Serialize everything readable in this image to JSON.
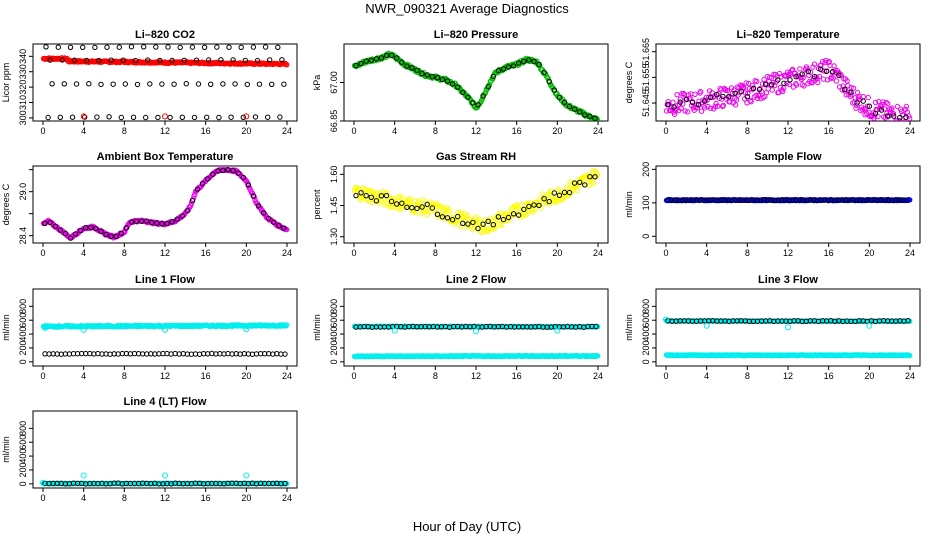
{
  "figure": {
    "title": "NWR_090321  Average Diagnostics",
    "xlabel": "Hour of Day (UTC)"
  },
  "chart_data": [
    {
      "type": "scatter",
      "title": "Li–820 CO2",
      "ylabel": "Licor ppm",
      "xlim": [
        0,
        24
      ],
      "ylim": [
        298,
        348
      ],
      "yticks": [
        300,
        310,
        320,
        330,
        340
      ],
      "xticks": [
        0,
        4,
        8,
        12,
        16,
        20,
        24
      ],
      "series": [
        {
          "name": "raw",
          "color": "#ff0000",
          "marker": "open-circle",
          "pattern": "flat",
          "start": 337,
          "end": 335,
          "bump_start": 0,
          "bump_end": 2.4,
          "bump_value": 338.5,
          "jitter": 0.5
        },
        {
          "name": "avg-high",
          "color": "#000000",
          "marker": "open-circle",
          "pattern": "sparse",
          "value": 346,
          "step": 1.2,
          "offset": 0.3
        },
        {
          "name": "avg-mid",
          "color": "#000000",
          "marker": "open-circle",
          "pattern": "sparse",
          "value": 337.5,
          "step": 1.2,
          "offset": 0.7
        },
        {
          "name": "avg-low",
          "color": "#000000",
          "marker": "open-circle",
          "pattern": "sparse",
          "value": 322,
          "step": 1.2,
          "offset": 0.9
        },
        {
          "name": "avg-bottom",
          "color": "#000000",
          "marker": "open-circle",
          "pattern": "sparse",
          "value": 300.5,
          "step": 1.2,
          "offset": 0.5
        },
        {
          "name": "red-markers",
          "color": "#ff0000",
          "marker": "open-circle",
          "pattern": "points",
          "x": [
            4,
            12,
            20
          ],
          "y": [
            301,
            301,
            301
          ]
        }
      ]
    },
    {
      "type": "scatter",
      "title": "Li–820 Pressure",
      "ylabel": "kPa",
      "xlim": [
        0,
        24
      ],
      "ylim": [
        66.85,
        67.15
      ],
      "yticks": [
        66.85,
        67.0
      ],
      "ytick_labels": [
        "66.85",
        "67.00"
      ],
      "xticks": [
        0,
        4,
        8,
        12,
        16,
        20,
        24
      ],
      "series": [
        {
          "name": "raw",
          "color": "#00bb00",
          "marker": "open-circle",
          "pattern": "curve",
          "x": [
            0,
            1,
            2,
            3,
            3.5,
            4,
            5,
            6,
            7,
            8,
            9,
            10,
            11,
            11.5,
            12,
            12.5,
            13,
            13.5,
            14,
            15,
            16,
            17,
            18,
            19,
            20,
            21,
            22,
            23,
            24
          ],
          "y": [
            67.06,
            67.08,
            67.09,
            67.1,
            67.11,
            67.1,
            67.07,
            67.05,
            67.03,
            67.02,
            67.01,
            66.99,
            66.95,
            66.93,
            66.9,
            66.93,
            66.97,
            67.01,
            67.04,
            67.06,
            67.07,
            67.09,
            67.08,
            67.02,
            66.95,
            66.91,
            66.89,
            66.87,
            66.855
          ],
          "jitter": 0.006
        },
        {
          "name": "avg",
          "color": "#000000",
          "marker": "open-circle",
          "pattern": "curve-sparse",
          "step": 0.5
        }
      ]
    },
    {
      "type": "scatter",
      "title": "Li–820 Temperature",
      "ylabel": "degrees C",
      "xlim": [
        0,
        24
      ],
      "ylim": [
        51.638,
        51.668
      ],
      "yticks": [
        51.645,
        51.655,
        51.665
      ],
      "ytick_labels": [
        "51.645",
        "51.655",
        "51.665"
      ],
      "xticks": [
        0,
        4,
        8,
        12,
        16,
        20,
        24
      ],
      "series": [
        {
          "name": "raw",
          "color": "#ee00ee",
          "marker": "open-circle",
          "pattern": "curve",
          "x": [
            0,
            4,
            8,
            12,
            14,
            16,
            17,
            18,
            20,
            22,
            24
          ],
          "y": [
            51.644,
            51.646,
            51.649,
            51.654,
            51.656,
            51.658,
            51.655,
            51.649,
            51.643,
            51.641,
            51.64
          ],
          "jitter": 0.004
        },
        {
          "name": "avg",
          "color": "#000000",
          "marker": "open-circle",
          "pattern": "curve-sparse",
          "step": 0.6
        }
      ]
    },
    {
      "type": "scatter",
      "title": "Ambient Box Temperature",
      "ylabel": "degrees C",
      "xlim": [
        0,
        24
      ],
      "ylim": [
        28.3,
        29.35
      ],
      "yticks": [
        28.4,
        28.7,
        29.0,
        29.3
      ],
      "ytick_labels": [
        "28.4",
        "",
        "29.0",
        ""
      ],
      "xticks": [
        0,
        4,
        8,
        12,
        16,
        20,
        24
      ],
      "series": [
        {
          "name": "raw",
          "color": "#ee00ee",
          "marker": "open-circle",
          "pattern": "curve",
          "x": [
            0,
            0.5,
            1,
            2,
            2.7,
            3.5,
            4,
            5,
            6,
            7,
            8,
            8.5,
            9,
            10,
            11,
            12,
            13,
            14,
            14.5,
            15,
            16,
            17,
            18,
            19,
            20,
            21,
            22,
            23,
            24
          ],
          "y": [
            28.55,
            28.6,
            28.55,
            28.45,
            28.37,
            28.45,
            28.5,
            28.52,
            28.43,
            28.38,
            28.45,
            28.58,
            28.6,
            28.6,
            28.57,
            28.56,
            28.6,
            28.7,
            28.8,
            29.0,
            29.15,
            29.28,
            29.3,
            29.28,
            29.15,
            28.85,
            28.65,
            28.55,
            28.48
          ],
          "jitter": 0.012
        },
        {
          "name": "avg",
          "color": "#000000",
          "marker": "open-circle",
          "pattern": "curve-sparse",
          "step": 0.5
        }
      ]
    },
    {
      "type": "scatter",
      "title": "Gas Stream RH",
      "ylabel": "percent",
      "xlim": [
        0,
        24
      ],
      "ylim": [
        1.27,
        1.64
      ],
      "yticks": [
        1.3,
        1.45,
        1.6
      ],
      "ytick_labels": [
        "1.30",
        "1.45",
        "1.60"
      ],
      "xticks": [
        0,
        4,
        8,
        12,
        16,
        20,
        24
      ],
      "series": [
        {
          "name": "raw",
          "color": "#ffff00",
          "marker": "open-circle",
          "pattern": "curve",
          "x": [
            0,
            4,
            8,
            10,
            12,
            13,
            16,
            20,
            22,
            24
          ],
          "y": [
            1.52,
            1.47,
            1.43,
            1.39,
            1.36,
            1.35,
            1.42,
            1.5,
            1.55,
            1.6
          ],
          "jitter": 0.035
        },
        {
          "name": "avg",
          "color": "#000000",
          "marker": "open-circle",
          "pattern": "curve-sparse",
          "step": 0.5,
          "jitter": 0.02
        }
      ]
    },
    {
      "type": "scatter",
      "title": "Sample Flow",
      "ylabel": "ml/min",
      "xlim": [
        0,
        24
      ],
      "ylim": [
        -20,
        210
      ],
      "yticks": [
        0,
        100,
        200
      ],
      "xticks": [
        0,
        4,
        8,
        12,
        16,
        20,
        24
      ],
      "series": [
        {
          "name": "raw",
          "color": "#0000ff",
          "marker": "open-circle",
          "pattern": "flat",
          "start": 108,
          "end": 108,
          "jitter": 1.5
        },
        {
          "name": "avg",
          "color": "#000000",
          "marker": "open-circle",
          "pattern": "sparse",
          "value": 108,
          "step": 0.35,
          "offset": 0.2
        }
      ]
    },
    {
      "type": "scatter",
      "title": "Line 1 Flow",
      "ylabel": "ml/min",
      "xlim": [
        0,
        24
      ],
      "ylim": [
        -60,
        1050
      ],
      "yticks": [
        0,
        200,
        400,
        600,
        800
      ],
      "xticks": [
        0,
        4,
        8,
        12,
        16,
        20,
        24
      ],
      "series": [
        {
          "name": "raw",
          "color": "#00eeee",
          "marker": "open-circle",
          "pattern": "flat",
          "start": 510,
          "end": 525,
          "jitter": 10
        },
        {
          "name": "avg",
          "color": "#000000",
          "marker": "open-circle",
          "pattern": "sparse",
          "value": 115,
          "step": 0.4,
          "offset": 0.2
        },
        {
          "name": "dips",
          "color": "#00eeee",
          "marker": "open-circle",
          "pattern": "points",
          "x": [
            0.2,
            4,
            12,
            20
          ],
          "y": [
            490,
            460,
            460,
            470
          ]
        }
      ]
    },
    {
      "type": "scatter",
      "title": "Line 2 Flow",
      "ylabel": "ml/min",
      "xlim": [
        0,
        24
      ],
      "ylim": [
        -60,
        1050
      ],
      "yticks": [
        0,
        200,
        400,
        600,
        800
      ],
      "xticks": [
        0,
        4,
        8,
        12,
        16,
        20,
        24
      ],
      "series": [
        {
          "name": "raw",
          "color": "#00eeee",
          "marker": "open-circle",
          "pattern": "flat",
          "start": 80,
          "end": 85,
          "jitter": 6
        },
        {
          "name": "raw-high",
          "color": "#00eeee",
          "marker": "open-circle",
          "pattern": "flat",
          "start": 510,
          "end": 505,
          "jitter": 3
        },
        {
          "name": "avg",
          "color": "#000000",
          "marker": "open-circle",
          "pattern": "sparse",
          "value": 505,
          "step": 0.4,
          "offset": 0.2
        },
        {
          "name": "dips",
          "color": "#00eeee",
          "marker": "open-circle",
          "pattern": "points",
          "x": [
            4,
            12,
            20
          ],
          "y": [
            450,
            440,
            450
          ]
        }
      ]
    },
    {
      "type": "scatter",
      "title": "Line 3 Flow",
      "ylabel": "ml/min",
      "xlim": [
        0,
        24
      ],
      "ylim": [
        -60,
        1050
      ],
      "yticks": [
        0,
        200,
        400,
        600,
        800
      ],
      "xticks": [
        0,
        4,
        8,
        12,
        16,
        20,
        24
      ],
      "series": [
        {
          "name": "raw",
          "color": "#00eeee",
          "marker": "open-circle",
          "pattern": "flat",
          "start": 95,
          "end": 95,
          "jitter": 5
        },
        {
          "name": "raw-high",
          "color": "#00eeee",
          "marker": "open-circle",
          "pattern": "flat",
          "start": 590,
          "end": 585,
          "jitter": 3
        },
        {
          "name": "avg",
          "color": "#000000",
          "marker": "open-circle",
          "pattern": "sparse",
          "value": 588,
          "step": 0.4,
          "offset": 0.2
        },
        {
          "name": "dips",
          "color": "#00eeee",
          "marker": "open-circle",
          "pattern": "points",
          "x": [
            0,
            4,
            12,
            20
          ],
          "y": [
            610,
            520,
            500,
            520
          ]
        }
      ]
    },
    {
      "type": "scatter",
      "title": "Line 4 (LT) Flow",
      "ylabel": "ml/min",
      "xlim": [
        0,
        24
      ],
      "ylim": [
        -60,
        1050
      ],
      "yticks": [
        0,
        200,
        400,
        600,
        800
      ],
      "xticks": [
        0,
        4,
        8,
        12,
        16,
        20,
        24
      ],
      "series": [
        {
          "name": "raw",
          "color": "#00eeee",
          "marker": "open-circle",
          "pattern": "flat",
          "start": 5,
          "end": 5,
          "jitter": 3
        },
        {
          "name": "avg",
          "color": "#000000",
          "marker": "open-circle",
          "pattern": "sparse",
          "value": 5,
          "step": 0.4,
          "offset": 0.2
        },
        {
          "name": "spikes",
          "color": "#00eeee",
          "marker": "open-circle",
          "pattern": "points",
          "x": [
            0,
            4,
            12,
            20
          ],
          "y": [
            15,
            120,
            120,
            120
          ]
        }
      ]
    }
  ]
}
